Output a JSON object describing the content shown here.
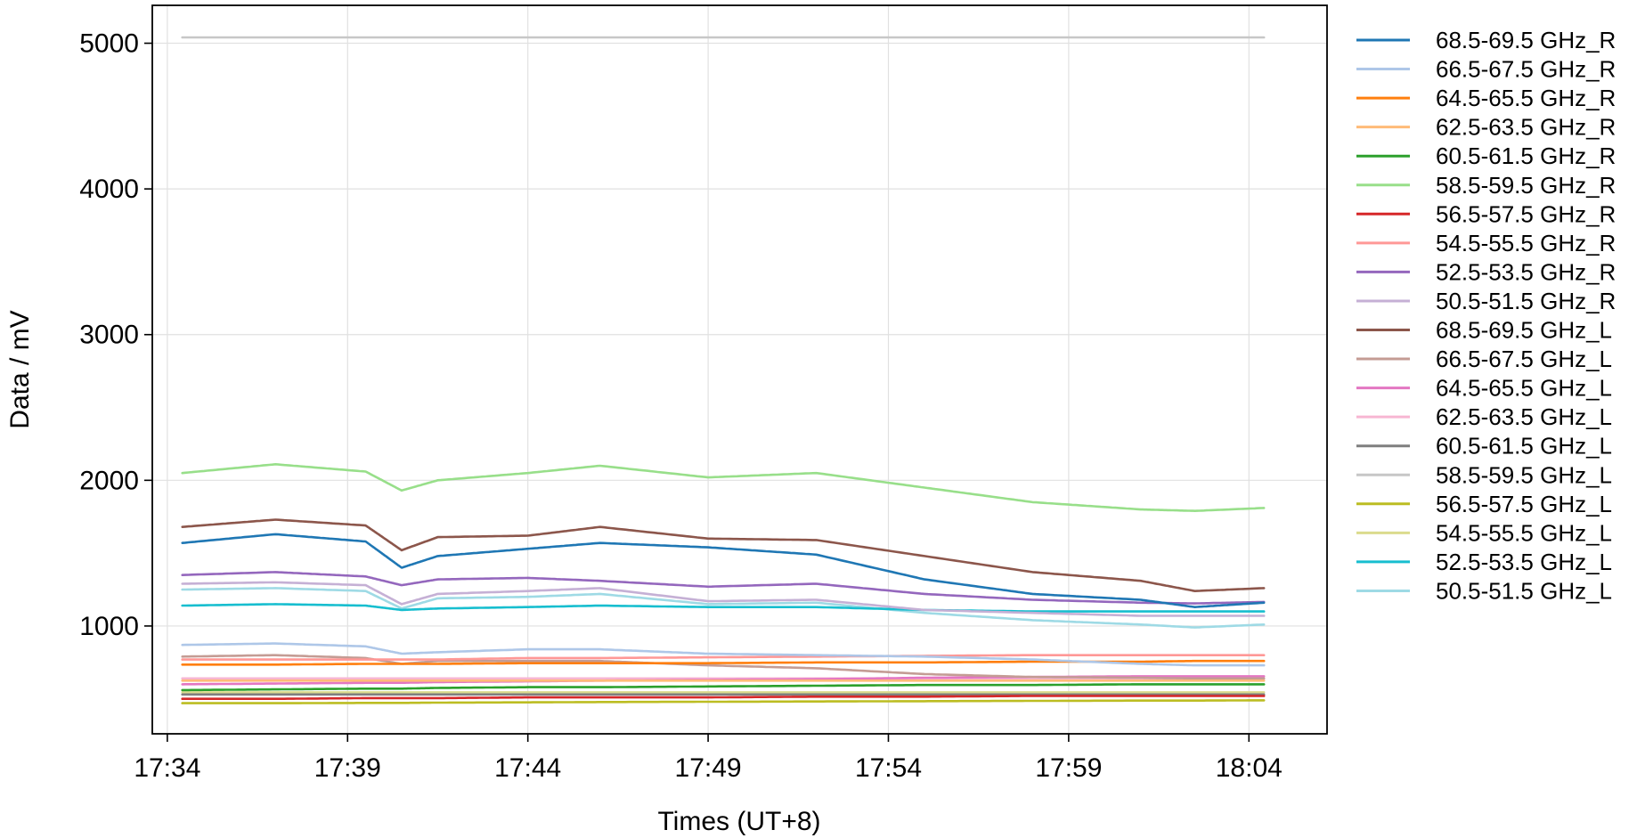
{
  "chart_data": {
    "type": "line",
    "xlabel": "Times (UT+8)",
    "ylabel": "Data / mV",
    "x_ticks": [
      "17:34",
      "17:39",
      "17:44",
      "17:49",
      "17:54",
      "17:59",
      "18:04"
    ],
    "x_range": [
      "17:33:35",
      "18:06:10"
    ],
    "x_data_range": [
      "17:34:25",
      "18:04:25"
    ],
    "y_ticks": [
      1000,
      2000,
      3000,
      4000,
      5000
    ],
    "ylim": [
      260,
      5260
    ],
    "grid": true,
    "legend_position": "right outside",
    "times": [
      "17:34:25",
      "17:37:00",
      "17:39:30",
      "17:40:30",
      "17:41:30",
      "17:44:00",
      "17:46:00",
      "17:49:00",
      "17:52:00",
      "17:55:00",
      "17:58:00",
      "18:01:00",
      "18:02:30",
      "18:04:25"
    ],
    "series": [
      {
        "name": "68.5-69.5 GHz_R",
        "color": "#1f77b4",
        "values": [
          1570,
          1630,
          1580,
          1400,
          1480,
          1530,
          1570,
          1540,
          1490,
          1320,
          1220,
          1180,
          1130,
          1160
        ]
      },
      {
        "name": "66.5-67.5 GHz_R",
        "color": "#aec7e8",
        "values": [
          870,
          880,
          860,
          810,
          820,
          840,
          840,
          810,
          800,
          790,
          770,
          740,
          730,
          730
        ]
      },
      {
        "name": "64.5-65.5 GHz_R",
        "color": "#ff7f0e",
        "values": [
          735,
          735,
          740,
          740,
          740,
          745,
          745,
          745,
          750,
          750,
          755,
          755,
          760,
          760
        ]
      },
      {
        "name": "62.5-63.5 GHz_R",
        "color": "#ffbb78",
        "values": [
          625,
          625,
          625,
          625,
          625,
          625,
          625,
          625,
          625,
          625,
          625,
          625,
          625,
          625
        ]
      },
      {
        "name": "60.5-61.5 GHz_R",
        "color": "#2ca02c",
        "values": [
          560,
          565,
          570,
          570,
          575,
          580,
          580,
          585,
          590,
          595,
          595,
          600,
          600,
          600
        ]
      },
      {
        "name": "58.5-59.5 GHz_R",
        "color": "#98df8a",
        "values": [
          2050,
          2110,
          2060,
          1930,
          2000,
          2050,
          2100,
          2020,
          2050,
          1950,
          1850,
          1800,
          1790,
          1810
        ]
      },
      {
        "name": "56.5-57.5 GHz_R",
        "color": "#d62728",
        "values": [
          500,
          500,
          505,
          505,
          505,
          510,
          510,
          510,
          515,
          515,
          520,
          520,
          520,
          520
        ]
      },
      {
        "name": "54.5-55.5 GHz_R",
        "color": "#ff9896",
        "values": [
          770,
          770,
          770,
          770,
          770,
          780,
          780,
          785,
          790,
          795,
          800,
          800,
          800,
          800
        ]
      },
      {
        "name": "52.5-53.5 GHz_R",
        "color": "#9467bd",
        "values": [
          1350,
          1370,
          1340,
          1280,
          1320,
          1330,
          1310,
          1270,
          1290,
          1220,
          1180,
          1160,
          1155,
          1165
        ]
      },
      {
        "name": "50.5-51.5 GHz_R",
        "color": "#c5b0d5",
        "values": [
          1290,
          1300,
          1280,
          1150,
          1220,
          1240,
          1260,
          1170,
          1180,
          1110,
          1090,
          1070,
          1070,
          1070
        ]
      },
      {
        "name": "68.5-69.5 GHz_L",
        "color": "#8c564b",
        "values": [
          1680,
          1730,
          1690,
          1520,
          1610,
          1620,
          1680,
          1600,
          1590,
          1480,
          1370,
          1310,
          1240,
          1260
        ]
      },
      {
        "name": "66.5-67.5 GHz_L",
        "color": "#c49c94",
        "values": [
          790,
          800,
          780,
          740,
          760,
          760,
          760,
          730,
          710,
          670,
          650,
          645,
          640,
          640
        ]
      },
      {
        "name": "64.5-65.5 GHz_L",
        "color": "#e377c2",
        "values": [
          600,
          605,
          610,
          610,
          615,
          620,
          625,
          630,
          635,
          645,
          650,
          655,
          655,
          655
        ]
      },
      {
        "name": "62.5-63.5 GHz_L",
        "color": "#f7b6d2",
        "values": [
          640,
          640,
          640,
          640,
          640,
          640,
          640,
          640,
          640,
          640,
          640,
          640,
          640,
          640
        ]
      },
      {
        "name": "60.5-61.5 GHz_L",
        "color": "#7f7f7f",
        "values": [
          530,
          530,
          530,
          530,
          530,
          530,
          530,
          530,
          530,
          530,
          530,
          530,
          530,
          530
        ]
      },
      {
        "name": "58.5-59.5 GHz_L",
        "color": "#c7c7c7",
        "values": [
          5040,
          5040,
          5040,
          5040,
          5040,
          5040,
          5040,
          5040,
          5040,
          5040,
          5040,
          5040,
          5040,
          5040
        ]
      },
      {
        "name": "56.5-57.5 GHz_L",
        "color": "#bcbd22",
        "values": [
          470,
          470,
          472,
          472,
          474,
          476,
          478,
          480,
          482,
          484,
          486,
          488,
          488,
          490
        ]
      },
      {
        "name": "54.5-55.5 GHz_L",
        "color": "#dbdb8d",
        "values": [
          545,
          545,
          545,
          545,
          545,
          545,
          545,
          545,
          545,
          545,
          545,
          545,
          545,
          545
        ]
      },
      {
        "name": "52.5-53.5 GHz_L",
        "color": "#17becf",
        "values": [
          1140,
          1150,
          1140,
          1110,
          1120,
          1130,
          1140,
          1130,
          1130,
          1110,
          1100,
          1100,
          1100,
          1100
        ]
      },
      {
        "name": "50.5-51.5 GHz_L",
        "color": "#9edae5",
        "values": [
          1250,
          1260,
          1240,
          1120,
          1190,
          1200,
          1220,
          1150,
          1160,
          1090,
          1040,
          1010,
          990,
          1010
        ]
      }
    ]
  }
}
